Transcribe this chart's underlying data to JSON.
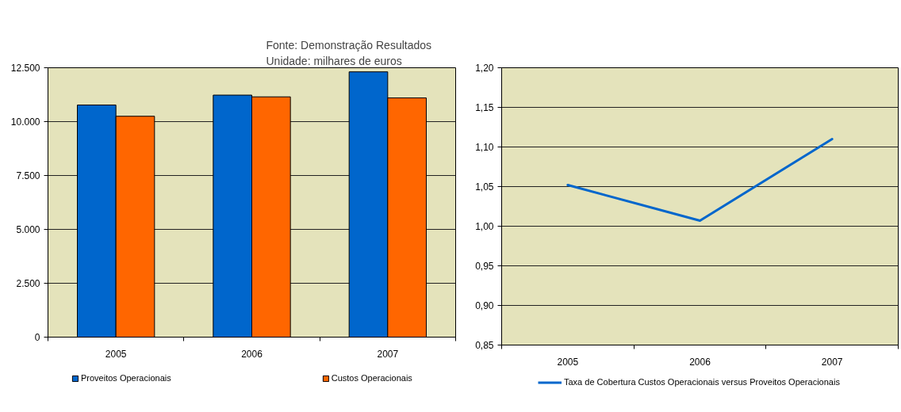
{
  "chart_data": [
    {
      "type": "bar",
      "categories": [
        "2005",
        "2006",
        "2007"
      ],
      "series": [
        {
          "name": "Proveitos Operacionais",
          "color": "#0066cc",
          "values": [
            10770,
            11230,
            12310
          ]
        },
        {
          "name": "Custos Operacionais",
          "color": "#ff6600",
          "values": [
            10250,
            11150,
            11100
          ]
        }
      ],
      "ylim": [
        0,
        12500
      ],
      "yticks": [
        0,
        {
          "value": 2500,
          "label": "2.500"
        },
        {
          "value": 5000,
          "label": "5.000"
        },
        {
          "value": 7500,
          "label": "7.500"
        },
        {
          "value": 10000,
          "label": "10.000"
        },
        {
          "value": 12500,
          "label": "12.500"
        }
      ],
      "grid": "y",
      "legend": "bottom",
      "annotations": [
        "Fonte: Demonstração Resultados",
        "Unidade: milhares de euros"
      ]
    },
    {
      "type": "line",
      "categories": [
        "2005",
        "2006",
        "2007"
      ],
      "series": [
        {
          "name": "Taxa de Cobertura Custos Operacionais versus Proveitos Operacionais",
          "color": "#0066cc",
          "values": [
            1.052,
            1.007,
            1.11
          ]
        }
      ],
      "ylim": [
        0.85,
        1.2
      ],
      "yticks": [
        {
          "value": 0.85,
          "label": "0,85"
        },
        {
          "value": 0.9,
          "label": "0,90"
        },
        {
          "value": 0.95,
          "label": "0,95"
        },
        {
          "value": 1.0,
          "label": "1,00"
        },
        {
          "value": 1.05,
          "label": "1,05"
        },
        {
          "value": 1.1,
          "label": "1,10"
        },
        {
          "value": 1.15,
          "label": "1,15"
        },
        {
          "value": 1.2,
          "label": "1,20"
        }
      ],
      "grid": "y",
      "legend": "bottom"
    }
  ]
}
